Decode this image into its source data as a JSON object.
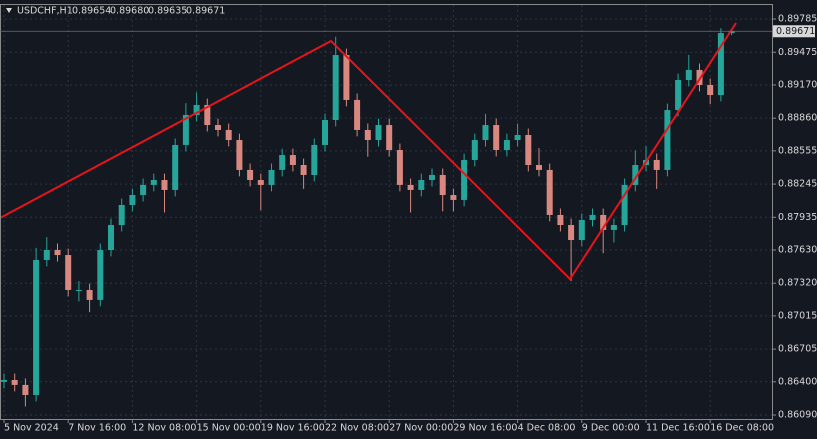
{
  "chart_data": {
    "type": "candlestick",
    "symbol": "USDCHF,H1",
    "last_bar_labels": [
      "0.89654",
      "0.89680",
      "0.89635",
      "0.89671"
    ],
    "up_color": "#26a69a",
    "down_color": "#d98880",
    "grid": true,
    "categories": [
      "5 Nov 2024",
      null,
      null,
      null,
      null,
      null,
      "7 Nov 16:00",
      null,
      null,
      null,
      null,
      null,
      "12 Nov 08:00",
      null,
      null,
      null,
      null,
      null,
      "15 Nov 00:00",
      null,
      null,
      null,
      null,
      null,
      "19 Nov 16:00",
      null,
      null,
      null,
      null,
      null,
      "22 Nov 08:00",
      null,
      null,
      null,
      null,
      null,
      "27 Nov 00:00",
      null,
      null,
      null,
      null,
      null,
      "29 Nov 16:00",
      null,
      null,
      null,
      null,
      null,
      "4 Dec 08:00",
      null,
      null,
      null,
      null,
      null,
      "9 Dec 00:00",
      null,
      null,
      null,
      null,
      null,
      "11 Dec 16:00",
      null,
      null,
      null,
      null,
      null,
      "16 Dec 08:00",
      null,
      null
    ],
    "open": [
      0.864,
      0.86417,
      0.86371,
      0.86277,
      0.87537,
      0.8763,
      0.87583,
      0.87257,
      0.87257,
      0.87164,
      0.8763,
      0.87863,
      0.8805,
      0.88143,
      0.88237,
      0.88283,
      0.8819,
      0.8861,
      0.8889,
      0.88983,
      0.88796,
      0.8875,
      0.88656,
      0.88377,
      0.88283,
      0.88237,
      0.88377,
      0.88516,
      0.88423,
      0.8833,
      0.8861,
      0.88843,
      0.89449,
      0.8903,
      0.8875,
      0.88656,
      0.88796,
      0.88563,
      0.88237,
      0.8819,
      0.88283,
      0.8833,
      0.88143,
      0.88097,
      0.8847,
      0.88656,
      0.88796,
      0.88563,
      0.88656,
      0.88703,
      0.88423,
      0.88377,
      0.87957,
      0.87863,
      0.87723,
      0.8791,
      0.87957,
      0.87817,
      0.87863,
      0.88237,
      0.88423,
      0.8847,
      0.88377,
      0.88936,
      0.89216,
      0.8931,
      0.8917,
      0.89076,
      0.89654
    ],
    "high": [
      0.86477,
      0.86477,
      0.86431,
      0.8765,
      0.8775,
      0.8769,
      0.87643,
      0.8734,
      0.87317,
      0.8769,
      0.87923,
      0.8811,
      0.88203,
      0.88297,
      0.88343,
      0.88343,
      0.8867,
      0.89,
      0.891,
      0.89043,
      0.88856,
      0.8881,
      0.88716,
      0.88437,
      0.88343,
      0.88437,
      0.88576,
      0.88576,
      0.88483,
      0.8867,
      0.88903,
      0.8962,
      0.89509,
      0.8909,
      0.8881,
      0.88856,
      0.88856,
      0.88623,
      0.88297,
      0.88343,
      0.8839,
      0.8839,
      0.88203,
      0.8853,
      0.88716,
      0.889,
      0.88856,
      0.88716,
      0.8881,
      0.88763,
      0.8858,
      0.88437,
      0.88017,
      0.87923,
      0.8797,
      0.88017,
      0.88017,
      0.87923,
      0.88297,
      0.8856,
      0.886,
      0.8853,
      0.88996,
      0.89276,
      0.8945,
      0.8937,
      0.8923,
      0.897,
      0.8968
    ],
    "low": [
      0.8634,
      0.86311,
      0.8617,
      0.86217,
      0.87477,
      0.87523,
      0.87197,
      0.8715,
      0.8705,
      0.87104,
      0.8757,
      0.87803,
      0.8799,
      0.88083,
      0.88177,
      0.8798,
      0.8813,
      0.8855,
      0.8883,
      0.88736,
      0.8869,
      0.88596,
      0.88317,
      0.88223,
      0.88,
      0.88177,
      0.88317,
      0.88363,
      0.882,
      0.8827,
      0.8855,
      0.88783,
      0.8897,
      0.8869,
      0.885,
      0.88596,
      0.88503,
      0.88177,
      0.8798,
      0.8813,
      0.88223,
      0.8799,
      0.8799,
      0.88037,
      0.8841,
      0.88596,
      0.88503,
      0.88503,
      0.88596,
      0.88363,
      0.88317,
      0.87897,
      0.87803,
      0.8734,
      0.87663,
      0.8785,
      0.876,
      0.877,
      0.87803,
      0.88177,
      0.88363,
      0.882,
      0.88317,
      0.88876,
      0.89156,
      0.8911,
      0.8899,
      0.89016,
      0.89635
    ],
    "close": [
      0.86417,
      0.86371,
      0.86277,
      0.87537,
      0.8763,
      0.87583,
      0.87257,
      0.87257,
      0.87164,
      0.8763,
      0.87863,
      0.8805,
      0.88143,
      0.88237,
      0.88283,
      0.8819,
      0.8861,
      0.8889,
      0.88983,
      0.88796,
      0.8875,
      0.88656,
      0.88377,
      0.88283,
      0.88237,
      0.88377,
      0.88516,
      0.88423,
      0.8833,
      0.8861,
      0.88843,
      0.89449,
      0.8903,
      0.8875,
      0.88656,
      0.88796,
      0.88563,
      0.88237,
      0.8819,
      0.88283,
      0.8833,
      0.88143,
      0.88097,
      0.8847,
      0.88656,
      0.88796,
      0.88563,
      0.88656,
      0.88703,
      0.88423,
      0.88377,
      0.87957,
      0.87863,
      0.87723,
      0.8791,
      0.87957,
      0.87817,
      0.87863,
      0.88237,
      0.88423,
      0.8847,
      0.88377,
      0.88936,
      0.89216,
      0.8931,
      0.8917,
      0.89076,
      0.89654,
      0.89671
    ],
    "ylim": [
      0.86053,
      0.89888
    ],
    "yticks": [
      0.89785,
      0.89475,
      {
        "value": 0.8917,
        "label": "0.89170"
      },
      {
        "value": 0.8886,
        "label": "0.88860"
      },
      0.88555,
      0.88245,
      0.87935,
      {
        "value": 0.8763,
        "label": "0.87630"
      },
      {
        "value": 0.8732,
        "label": "0.87320"
      },
      0.87015,
      0.86705,
      {
        "value": 0.864,
        "label": "0.86400"
      },
      {
        "value": 0.8609,
        "label": "0.86090"
      }
    ]
  }
}
